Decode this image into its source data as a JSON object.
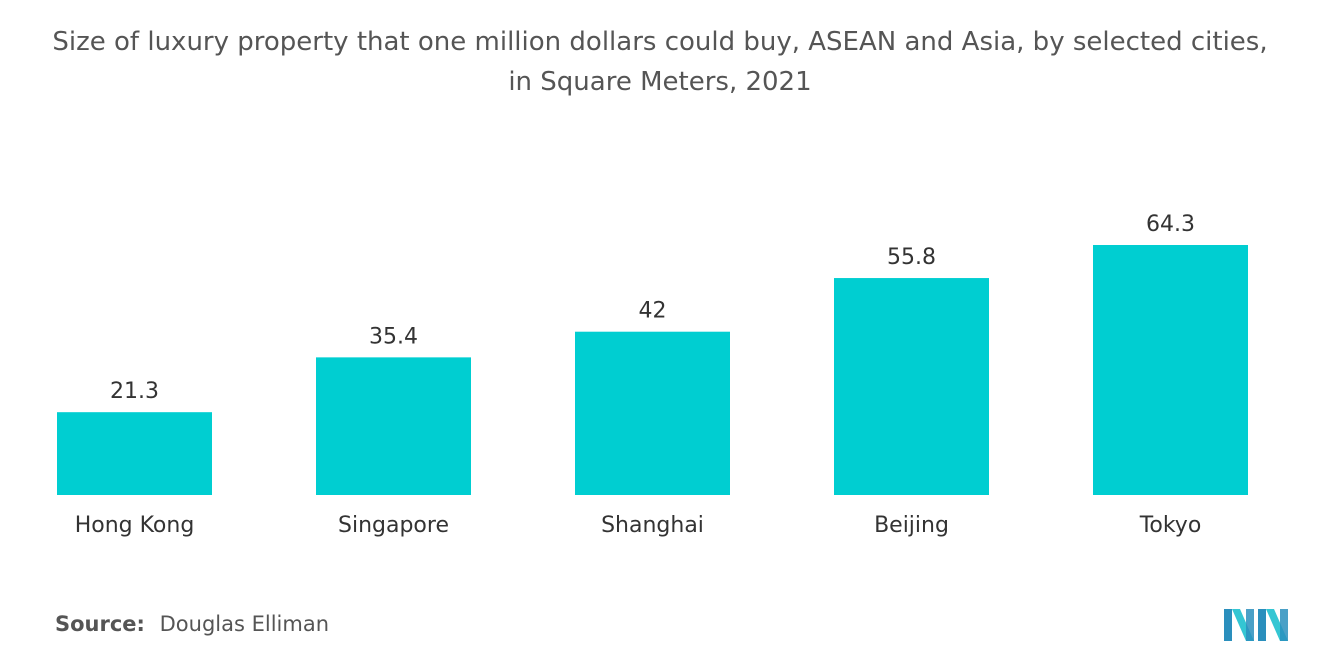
{
  "title_line1": "Size of luxury property that one million dollars could buy, ASEAN and Asia, by selected cities,",
  "title_line2": "in Square Meters, 2021",
  "source_label": "Source:",
  "source_text": "Douglas Elliman",
  "logo_icon": "mordor-intelligence-logo-icon",
  "colors": {
    "bar": "#00CED1",
    "label_text": "#333333",
    "logo_dark": "#2a8fbd",
    "logo_light": "#34c6d3"
  },
  "chart_data": {
    "type": "bar",
    "title": "Size of luxury property that one million dollars could buy, ASEAN and Asia, by selected cities, in Square Meters, 2021",
    "categories": [
      "Hong Kong",
      "Singapore",
      "Shanghai",
      "Beijing",
      "Tokyo"
    ],
    "values": [
      21.3,
      35.4,
      42,
      55.8,
      64.3
    ],
    "value_labels": [
      "21.3",
      "35.4",
      "42",
      "55.8",
      "64.3"
    ],
    "xlabel": "",
    "ylabel": "",
    "ylim": [
      0,
      64.3
    ],
    "grid": false,
    "legend": "none"
  }
}
